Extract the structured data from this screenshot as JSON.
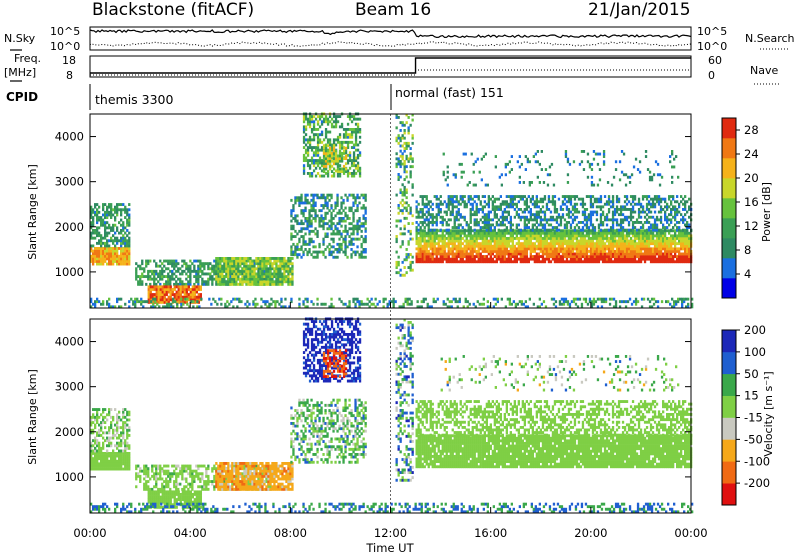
{
  "header": {
    "radar": "Blackstone (fitACF)",
    "beam": "Beam 16",
    "date": "21/Jan/2015"
  },
  "top_panels": {
    "nsky_label": "N.Sky",
    "nsky_ticks": [
      "10^5",
      "10^0"
    ],
    "nsearch_label": "N.Search",
    "freq_label_1": "Freq.",
    "freq_label_2": "[MHz]",
    "freq_ticks": [
      "18",
      "8"
    ],
    "nave_label": "Nave",
    "nave_ticks": [
      "60",
      "0"
    ],
    "cpid_label": "CPID",
    "cpid_segments": [
      {
        "label": "themis 3300",
        "start_hour": 0,
        "end_hour": 12.0
      },
      {
        "label": "normal (fast) 151",
        "start_hour": 12.0,
        "end_hour": 24
      }
    ]
  },
  "chart_data": [
    {
      "type": "heatmap",
      "panel": "power",
      "xlabel": "",
      "ylabel": "Slant Range [km]",
      "x_range_hours": [
        0,
        24
      ],
      "ylim": [
        200,
        4500
      ],
      "yticks": [
        "1000",
        "2000",
        "3000",
        "4000"
      ],
      "colorbar_label": "Power [dB]",
      "colorbar_ticks": [
        "28",
        "24",
        "20",
        "16",
        "12",
        "8",
        "4"
      ],
      "colorbar_range": [
        0,
        30
      ],
      "colors": [
        "#0000e6",
        "#1a6fe0",
        "#2e8a62",
        "#3a9f55",
        "#66c23d",
        "#c8d62a",
        "#f5b21a",
        "#f07814",
        "#e02a10"
      ]
    },
    {
      "type": "heatmap",
      "panel": "velocity",
      "xlabel": "Time UT",
      "ylabel": "Slant Range [km]",
      "x_range_hours": [
        0,
        24
      ],
      "ylim": [
        200,
        4500
      ],
      "yticks": [
        "1000",
        "2000",
        "3000",
        "4000"
      ],
      "xticks": [
        "00:00",
        "04:00",
        "08:00",
        "12:00",
        "16:00",
        "20:00",
        "00:00"
      ],
      "colorbar_label": "Velocity [m s⁻¹]",
      "colorbar_ticks": [
        "200",
        "100",
        "50",
        "15",
        "-15",
        "-50",
        "-100",
        "-200"
      ],
      "colorbar_range": [
        -250,
        250
      ],
      "colors": [
        "#e01010",
        "#f06a14",
        "#f5a81a",
        "#c9c9c0",
        "#7fcf45",
        "#3aa84a",
        "#1f5fd0",
        "#1c28b8"
      ]
    }
  ]
}
